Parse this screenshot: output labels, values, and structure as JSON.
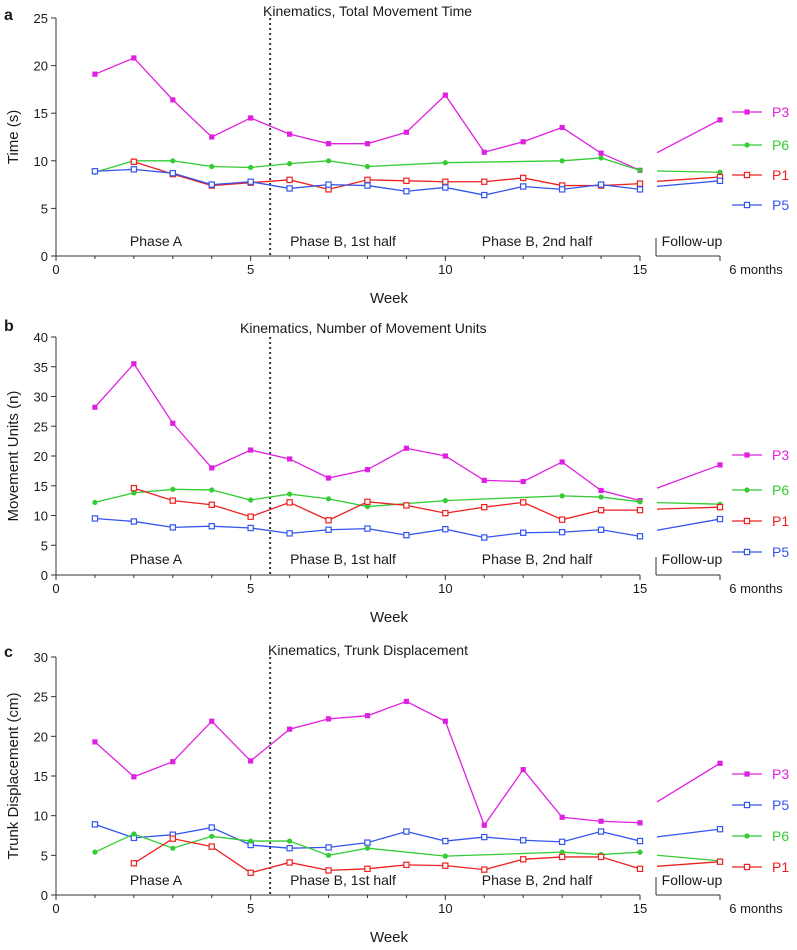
{
  "chart_data": [
    {
      "type": "line",
      "panel": "a",
      "title": "Kinematics, Total Movement Time",
      "xlabel": "Week",
      "ylabel": "Time (s)",
      "xlim": [
        0,
        15
      ],
      "ylim": [
        0,
        25
      ],
      "yticks": [
        0,
        5,
        10,
        15,
        20,
        25
      ],
      "xticks": [
        0,
        5,
        10,
        15
      ],
      "followup_label": "6 months",
      "phases": [
        "Phase A",
        "Phase B, 1st half",
        "Phase B, 2nd half",
        "Follow-up"
      ],
      "series": [
        {
          "name": "P3",
          "color": "#e020e0",
          "marker": "square-filled",
          "x": [
            1,
            2,
            3,
            4,
            5,
            6,
            7,
            8,
            9,
            10,
            11,
            12,
            13,
            14,
            15
          ],
          "y": [
            19.1,
            20.8,
            16.4,
            12.5,
            14.5,
            12.8,
            11.8,
            11.8,
            13.0,
            16.9,
            10.9,
            12.0,
            13.5,
            10.8,
            9.0
          ],
          "followup": 14.3
        },
        {
          "name": "P6",
          "color": "#33cc33",
          "marker": "circle-filled",
          "x": [
            1,
            2,
            3,
            4,
            5,
            6,
            7,
            8,
            9,
            10,
            11,
            12,
            13,
            14,
            15
          ],
          "y": [
            8.8,
            10.0,
            10.0,
            9.4,
            9.3,
            9.7,
            10.0,
            9.4,
            null,
            9.8,
            null,
            null,
            10.0,
            10.3,
            9.0
          ],
          "followup": 8.8
        },
        {
          "name": "P1",
          "color": "#ee2020",
          "marker": "square-open",
          "x": [
            1,
            2,
            3,
            4,
            5,
            6,
            7,
            8,
            9,
            10,
            11,
            12,
            13,
            14,
            15
          ],
          "y": [
            null,
            9.9,
            8.6,
            7.4,
            7.7,
            8.0,
            7.0,
            8.0,
            7.9,
            7.8,
            7.8,
            8.2,
            7.4,
            7.4,
            7.6
          ],
          "followup": 8.3
        },
        {
          "name": "P5",
          "color": "#3355ee",
          "marker": "square-open",
          "x": [
            1,
            2,
            3,
            4,
            5,
            6,
            7,
            8,
            9,
            10,
            11,
            12,
            13,
            14,
            15
          ],
          "y": [
            8.9,
            9.1,
            8.7,
            7.5,
            7.8,
            7.1,
            7.5,
            7.4,
            6.8,
            7.2,
            6.4,
            7.3,
            7.0,
            7.5,
            7.0
          ],
          "followup": 7.9
        }
      ]
    },
    {
      "type": "line",
      "panel": "b",
      "title": "Kinematics, Number of Movement Units",
      "xlabel": "Week",
      "ylabel": "Movement Units (n)",
      "xlim": [
        0,
        15
      ],
      "ylim": [
        0,
        40
      ],
      "yticks": [
        0,
        5,
        10,
        15,
        20,
        25,
        30,
        35,
        40
      ],
      "xticks": [
        0,
        5,
        10,
        15
      ],
      "followup_label": "6 months",
      "phases": [
        "Phase A",
        "Phase B, 1st half",
        "Phase B, 2nd half",
        "Follow-up"
      ],
      "series": [
        {
          "name": "P3",
          "color": "#e020e0",
          "marker": "square-filled",
          "x": [
            1,
            2,
            3,
            4,
            5,
            6,
            7,
            8,
            9,
            10,
            11,
            12,
            13,
            14,
            15
          ],
          "y": [
            28.2,
            35.5,
            25.5,
            18.0,
            21.0,
            19.5,
            16.3,
            17.7,
            21.3,
            20.0,
            15.9,
            15.7,
            19.0,
            14.2,
            12.5
          ],
          "followup": 18.5
        },
        {
          "name": "P6",
          "color": "#33cc33",
          "marker": "circle-filled",
          "x": [
            1,
            2,
            3,
            4,
            5,
            6,
            7,
            8,
            9,
            10,
            11,
            12,
            13,
            14,
            15
          ],
          "y": [
            12.2,
            13.8,
            14.4,
            14.3,
            12.6,
            13.6,
            12.8,
            11.5,
            null,
            12.5,
            null,
            null,
            13.3,
            13.1,
            12.3
          ],
          "followup": 11.9
        },
        {
          "name": "P1",
          "color": "#ee2020",
          "marker": "square-open",
          "x": [
            1,
            2,
            3,
            4,
            5,
            6,
            7,
            8,
            9,
            10,
            11,
            12,
            13,
            14,
            15
          ],
          "y": [
            null,
            14.6,
            12.5,
            11.8,
            9.8,
            12.2,
            9.2,
            12.3,
            11.7,
            10.4,
            11.4,
            12.2,
            9.3,
            10.9,
            10.9
          ],
          "followup": 11.4
        },
        {
          "name": "P5",
          "color": "#3355ee",
          "marker": "square-open",
          "x": [
            1,
            2,
            3,
            4,
            5,
            6,
            7,
            8,
            9,
            10,
            11,
            12,
            13,
            14,
            15
          ],
          "y": [
            9.5,
            9.0,
            8.0,
            8.2,
            7.9,
            7.0,
            7.6,
            7.8,
            6.7,
            7.7,
            6.3,
            7.1,
            7.2,
            7.6,
            6.5
          ],
          "followup": 9.4
        }
      ]
    },
    {
      "type": "line",
      "panel": "c",
      "title": "Kinematics, Trunk Displacement",
      "xlabel": "Week",
      "ylabel": "Trunk Displacement (cm)",
      "xlim": [
        0,
        15
      ],
      "ylim": [
        0,
        30
      ],
      "yticks": [
        0,
        5,
        10,
        15,
        20,
        25,
        30
      ],
      "xticks": [
        0,
        5,
        10,
        15
      ],
      "followup_label": "6 months",
      "phases": [
        "Phase A",
        "Phase B, 1st half",
        "Phase B, 2nd half",
        "Follow-up"
      ],
      "series": [
        {
          "name": "P3",
          "color": "#e020e0",
          "marker": "square-filled",
          "x": [
            1,
            2,
            3,
            4,
            5,
            6,
            7,
            8,
            9,
            10,
            11,
            12,
            13,
            14,
            15
          ],
          "y": [
            19.3,
            14.9,
            16.8,
            21.9,
            16.9,
            20.9,
            22.2,
            22.6,
            24.4,
            21.9,
            8.8,
            15.8,
            9.8,
            9.3,
            9.1
          ],
          "followup": 16.6
        },
        {
          "name": "P5",
          "color": "#3355ee",
          "marker": "square-open",
          "x": [
            1,
            2,
            3,
            4,
            5,
            6,
            7,
            8,
            9,
            10,
            11,
            12,
            13,
            14,
            15
          ],
          "y": [
            8.9,
            7.2,
            7.6,
            8.5,
            6.3,
            5.9,
            6.0,
            6.6,
            8.0,
            6.8,
            7.3,
            6.9,
            6.7,
            8.0,
            6.8
          ],
          "followup": 8.3
        },
        {
          "name": "P6",
          "color": "#33cc33",
          "marker": "circle-filled",
          "x": [
            1,
            2,
            3,
            4,
            5,
            6,
            7,
            8,
            9,
            10,
            11,
            12,
            13,
            14,
            15
          ],
          "y": [
            5.4,
            7.7,
            5.9,
            7.4,
            6.8,
            6.8,
            5.0,
            5.9,
            null,
            4.9,
            null,
            null,
            5.4,
            5.1,
            5.4
          ],
          "followup": 4.3
        },
        {
          "name": "P1",
          "color": "#ee2020",
          "marker": "square-open",
          "x": [
            1,
            2,
            3,
            4,
            5,
            6,
            7,
            8,
            9,
            10,
            11,
            12,
            13,
            14,
            15
          ],
          "y": [
            null,
            4.0,
            7.1,
            6.1,
            2.8,
            4.1,
            3.1,
            3.3,
            3.8,
            3.7,
            3.2,
            4.5,
            4.8,
            4.8,
            3.3
          ],
          "followup": 4.2
        }
      ]
    }
  ]
}
